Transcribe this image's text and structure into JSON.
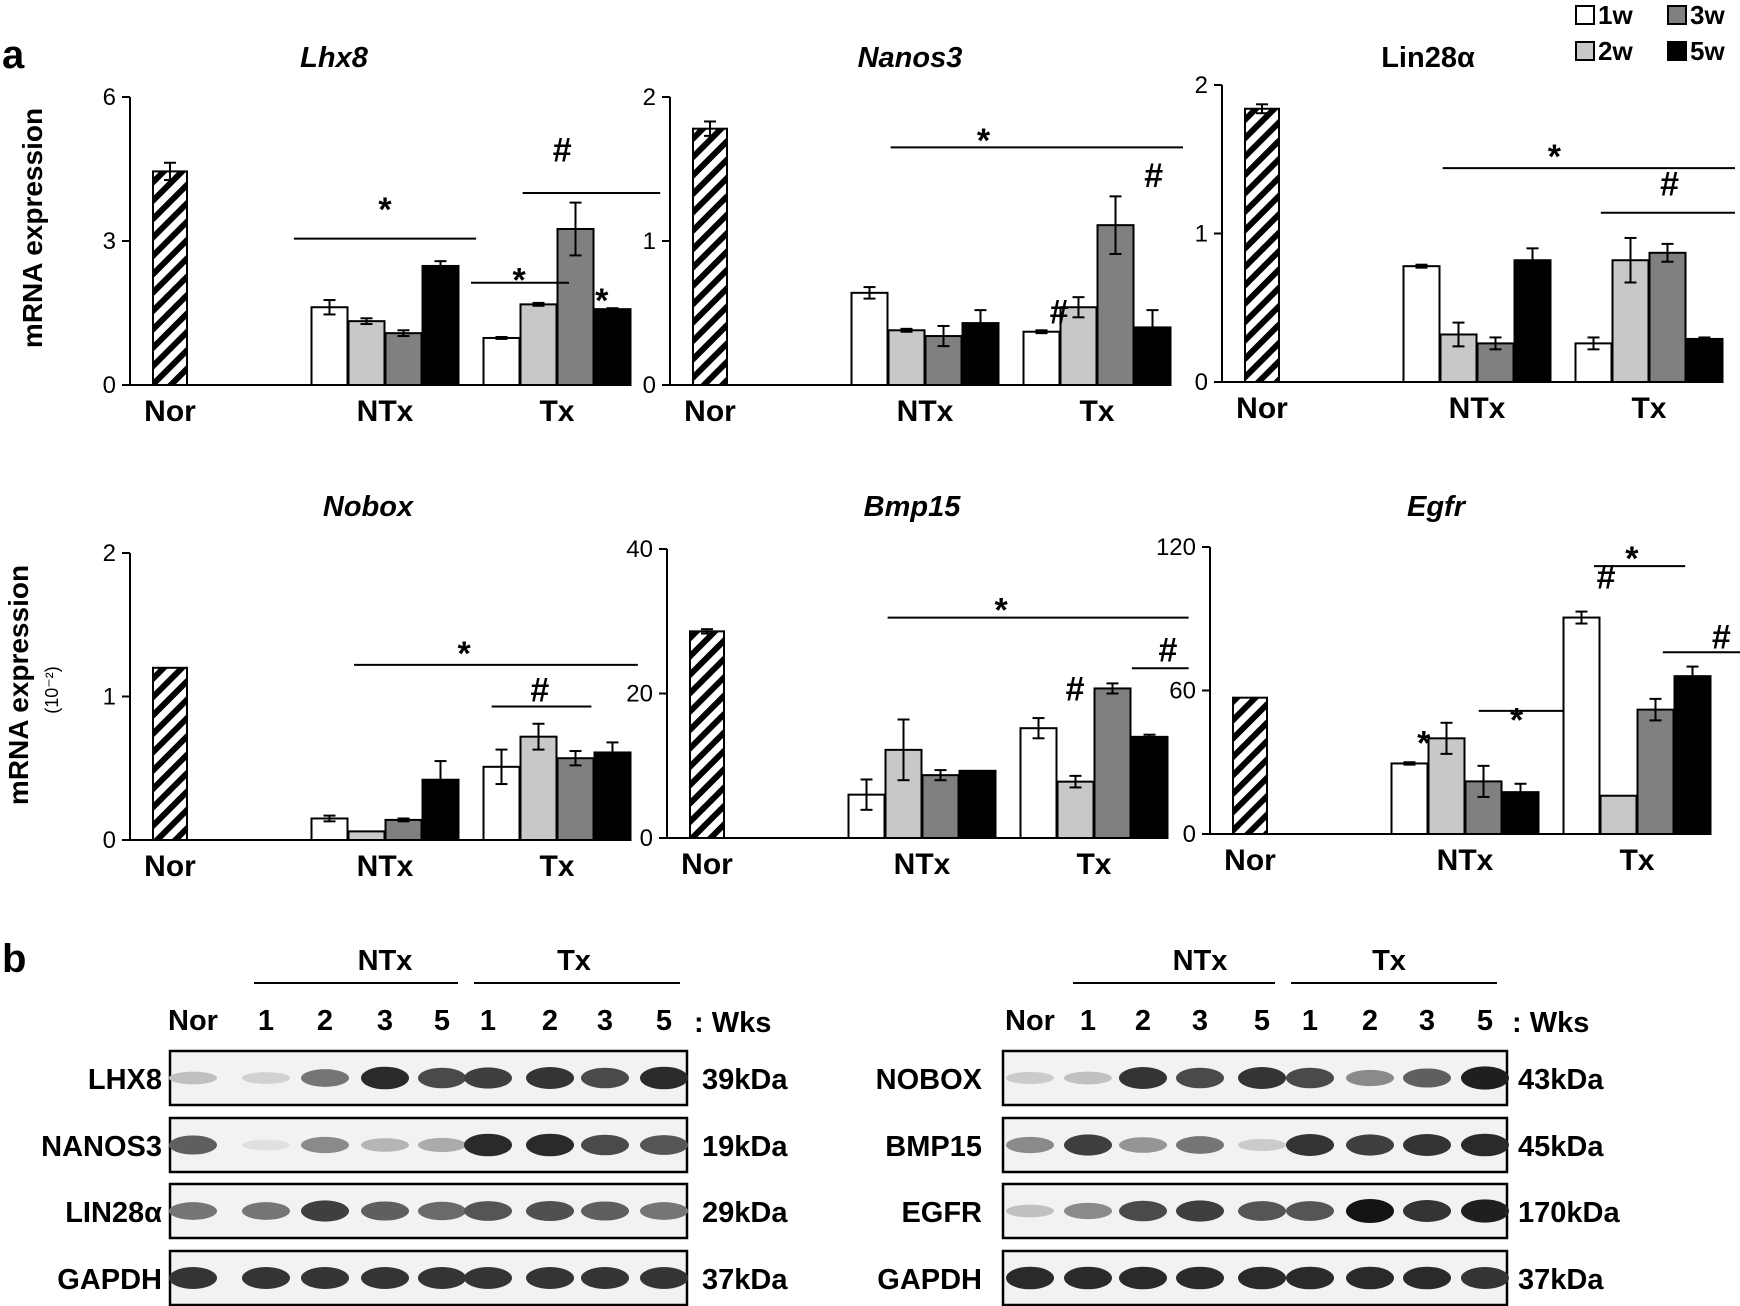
{
  "panel_a_label": "a",
  "panel_b_label": "b",
  "y_axis_label": "mRNA expression",
  "y_axis_unit_nobox": "(10⁻²)",
  "legend": {
    "items": [
      {
        "label": "1w",
        "color": "#ffffff"
      },
      {
        "label": "3w",
        "color": "#808080"
      },
      {
        "label": "2w",
        "color": "#c8c8c8"
      },
      {
        "label": "5w",
        "color": "#000000"
      }
    ]
  },
  "chart_data": [
    {
      "type": "bar",
      "title": "Lhx8",
      "italic": true,
      "groups": [
        "Nor",
        "NTx",
        "Tx"
      ],
      "yticks": [
        "0",
        "3",
        "6"
      ],
      "ylim": [
        0,
        6
      ],
      "nor": {
        "value": 4.45,
        "err": 0.18
      },
      "series": [
        {
          "name": "1w",
          "values": [
            1.62,
            0.98
          ],
          "err": [
            0.15,
            0.02
          ]
        },
        {
          "name": "2w",
          "values": [
            1.33,
            1.68
          ],
          "err": [
            0.06,
            0.03
          ]
        },
        {
          "name": "3w",
          "values": [
            1.08,
            3.25
          ],
          "err": [
            0.06,
            0.55
          ]
        },
        {
          "name": "5w",
          "values": [
            2.48,
            1.58
          ],
          "err": [
            0.1,
            0.02
          ]
        }
      ],
      "annotations": [
        {
          "text": "*",
          "x": 1.5,
          "y": 3.75
        },
        {
          "text": "*",
          "x": 2.28,
          "y": 2.28
        },
        {
          "text": "#",
          "x": 2.53,
          "y": 4.7
        },
        {
          "text": "*",
          "x": 2.76,
          "y": 1.85
        }
      ],
      "brackets": [
        {
          "x1": 0.97,
          "x2": 2.03,
          "y": 3.05
        },
        {
          "x1": 2.0,
          "x2": 2.57,
          "y": 2.13
        },
        {
          "x1": 2.3,
          "x2": 3.1,
          "y": 4.0
        }
      ]
    },
    {
      "type": "bar",
      "title": "Nanos3",
      "italic": true,
      "groups": [
        "Nor",
        "NTx",
        "Tx"
      ],
      "yticks": [
        "0",
        "1",
        "2"
      ],
      "ylim": [
        0,
        2
      ],
      "nor": {
        "value": 1.78,
        "err": 0.05
      },
      "series": [
        {
          "name": "1w",
          "values": [
            0.64,
            0.37
          ],
          "err": [
            0.04,
            0.01
          ]
        },
        {
          "name": "2w",
          "values": [
            0.38,
            0.54
          ],
          "err": [
            0.01,
            0.07
          ]
        },
        {
          "name": "3w",
          "values": [
            0.34,
            1.11
          ],
          "err": [
            0.07,
            0.2
          ]
        },
        {
          "name": "5w",
          "values": [
            0.43,
            0.4
          ],
          "err": [
            0.09,
            0.12
          ]
        }
      ],
      "annotations": [
        {
          "text": "*",
          "x": 1.84,
          "y": 1.73
        },
        {
          "text": "#",
          "x": 2.28,
          "y": 0.44
        },
        {
          "text": "#",
          "x": 2.83,
          "y": 1.39
        }
      ],
      "brackets": [
        {
          "x1": 1.3,
          "x2": 3.0,
          "y": 1.65
        }
      ]
    },
    {
      "type": "bar",
      "title": "Lin28α",
      "italic": false,
      "groups": [
        "Nor",
        "NTx",
        "Tx"
      ],
      "yticks": [
        "0",
        "1",
        "2"
      ],
      "ylim": [
        0,
        2
      ],
      "nor": {
        "value": 1.84,
        "err": 0.03
      },
      "series": [
        {
          "name": "1w",
          "values": [
            0.78,
            0.26
          ],
          "err": [
            0.01,
            0.04
          ]
        },
        {
          "name": "2w",
          "values": [
            0.32,
            0.82
          ],
          "err": [
            0.08,
            0.15
          ]
        },
        {
          "name": "3w",
          "values": [
            0.26,
            0.87
          ],
          "err": [
            0.04,
            0.06
          ]
        },
        {
          "name": "5w",
          "values": [
            0.82,
            0.29
          ],
          "err": [
            0.08,
            0.01
          ]
        }
      ],
      "annotations": [
        {
          "text": "*",
          "x": 1.95,
          "y": 1.55
        },
        {
          "text": "#",
          "x": 2.62,
          "y": 1.27
        }
      ],
      "brackets": [
        {
          "x1": 1.3,
          "x2": 3.0,
          "y": 1.44
        },
        {
          "x1": 2.22,
          "x2": 3.0,
          "y": 1.14
        }
      ]
    },
    {
      "type": "bar",
      "title": "Nobox",
      "italic": true,
      "groups": [
        "Nor",
        "NTx",
        "Tx"
      ],
      "yticks": [
        "0",
        "1",
        "2"
      ],
      "ylim": [
        0,
        2
      ],
      "nor": {
        "value": 1.2,
        "err": 0
      },
      "series": [
        {
          "name": "1w",
          "values": [
            0.15,
            0.51
          ],
          "err": [
            0.02,
            0.12
          ]
        },
        {
          "name": "2w",
          "values": [
            0.06,
            0.72
          ],
          "err": [
            0.0,
            0.09
          ]
        },
        {
          "name": "3w",
          "values": [
            0.14,
            0.57
          ],
          "err": [
            0.01,
            0.05
          ]
        },
        {
          "name": "5w",
          "values": [
            0.42,
            0.61
          ],
          "err": [
            0.13,
            0.07
          ]
        }
      ],
      "annotations": [
        {
          "text": "*",
          "x": 1.96,
          "y": 1.33
        },
        {
          "text": "#",
          "x": 2.4,
          "y": 0.98
        }
      ],
      "brackets": [
        {
          "x1": 1.32,
          "x2": 2.97,
          "y": 1.22
        },
        {
          "x1": 2.12,
          "x2": 2.7,
          "y": 0.93
        }
      ]
    },
    {
      "type": "bar",
      "title": "Bmp15",
      "italic": true,
      "groups": [
        "Nor",
        "NTx",
        "Tx"
      ],
      "yticks": [
        "0",
        "20",
        "40"
      ],
      "ylim": [
        0,
        40
      ],
      "nor": {
        "value": 28.6,
        "err": 0.3
      },
      "series": [
        {
          "name": "1w",
          "values": [
            6.0,
            15.2
          ],
          "err": [
            2.1,
            1.4
          ]
        },
        {
          "name": "2w",
          "values": [
            12.2,
            7.8
          ],
          "err": [
            4.2,
            0.8
          ]
        },
        {
          "name": "3w",
          "values": [
            8.7,
            20.7
          ],
          "err": [
            0.7,
            0.7
          ]
        },
        {
          "name": "5w",
          "values": [
            9.3,
            14.0
          ],
          "err": [
            0.0,
            0.3
          ]
        }
      ],
      "annotations": [
        {
          "text": "*",
          "x": 1.96,
          "y": 32.2
        },
        {
          "text": "#",
          "x": 2.39,
          "y": 19.3
        },
        {
          "text": "#",
          "x": 2.93,
          "y": 24.7
        }
      ],
      "brackets": [
        {
          "x1": 1.3,
          "x2": 3.05,
          "y": 30.5
        },
        {
          "x1": 2.72,
          "x2": 3.05,
          "y": 23.5
        }
      ]
    },
    {
      "type": "bar",
      "title": "Egfr",
      "italic": true,
      "groups": [
        "Nor",
        "NTx",
        "Tx"
      ],
      "yticks": [
        "0",
        "60",
        "120"
      ],
      "ylim": [
        0,
        120
      ],
      "nor": {
        "value": 57,
        "err": 0
      },
      "series": [
        {
          "name": "1w",
          "values": [
            29.5,
            90.5
          ],
          "err": [
            0.5,
            2.5
          ]
        },
        {
          "name": "2w",
          "values": [
            40.0,
            16.0
          ],
          "err": [
            6.5,
            0.0
          ]
        },
        {
          "name": "3w",
          "values": [
            22.0,
            52.0
          ],
          "err": [
            6.5,
            4.5
          ]
        },
        {
          "name": "5w",
          "values": [
            17.5,
            66.0
          ],
          "err": [
            3.5,
            4.0
          ]
        }
      ],
      "annotations": [
        {
          "text": "*",
          "x": 1.26,
          "y": 40.0
        },
        {
          "text": "*",
          "x": 1.8,
          "y": 49.5
        },
        {
          "text": "#",
          "x": 2.32,
          "y": 103.5
        },
        {
          "text": "*",
          "x": 2.47,
          "y": 117.0
        },
        {
          "text": "#",
          "x": 2.99,
          "y": 78.5
        }
      ],
      "brackets": [
        {
          "x1": 1.58,
          "x2": 2.07,
          "y": 51.5
        },
        {
          "x1": 2.25,
          "x2": 2.78,
          "y": 112.0
        },
        {
          "x1": 2.65,
          "x2": 3.18,
          "y": 76.0
        }
      ]
    }
  ],
  "western_blot": {
    "group_labels": [
      "NTx",
      "Tx"
    ],
    "lane_labels": [
      "Nor",
      "1",
      "2",
      "3",
      "5",
      "1",
      "2",
      "3",
      "5"
    ],
    "wks_label": ": Wks",
    "left": {
      "rows": [
        {
          "protein": "LHX8",
          "size": "39kDa",
          "intensity": [
            0.2,
            0.12,
            0.55,
            0.9,
            0.75,
            0.8,
            0.85,
            0.75,
            0.9
          ]
        },
        {
          "protein": "NANOS3",
          "size": "19kDa",
          "intensity": [
            0.65,
            0.05,
            0.45,
            0.25,
            0.3,
            0.9,
            0.9,
            0.75,
            0.7
          ]
        },
        {
          "protein": "LIN28α",
          "size": "29kDa",
          "intensity": [
            0.55,
            0.55,
            0.8,
            0.65,
            0.6,
            0.7,
            0.72,
            0.65,
            0.55
          ]
        },
        {
          "protein": "GAPDH",
          "size": "37kDa",
          "intensity": [
            0.85,
            0.85,
            0.85,
            0.85,
            0.85,
            0.85,
            0.85,
            0.85,
            0.85
          ]
        }
      ]
    },
    "right": {
      "rows": [
        {
          "protein": "NOBOX",
          "size": "43kDa",
          "intensity": [
            0.15,
            0.2,
            0.85,
            0.75,
            0.85,
            0.75,
            0.45,
            0.65,
            0.95
          ]
        },
        {
          "protein": "BMP15",
          "size": "45kDa",
          "intensity": [
            0.45,
            0.8,
            0.4,
            0.55,
            0.15,
            0.85,
            0.8,
            0.85,
            0.9
          ]
        },
        {
          "protein": "EGFR",
          "size": "170kDa",
          "intensity": [
            0.2,
            0.45,
            0.75,
            0.8,
            0.7,
            0.7,
            1.0,
            0.85,
            0.95
          ]
        },
        {
          "protein": "GAPDH",
          "size": "37kDa",
          "intensity": [
            0.9,
            0.9,
            0.9,
            0.9,
            0.9,
            0.9,
            0.9,
            0.9,
            0.85
          ]
        }
      ]
    }
  }
}
